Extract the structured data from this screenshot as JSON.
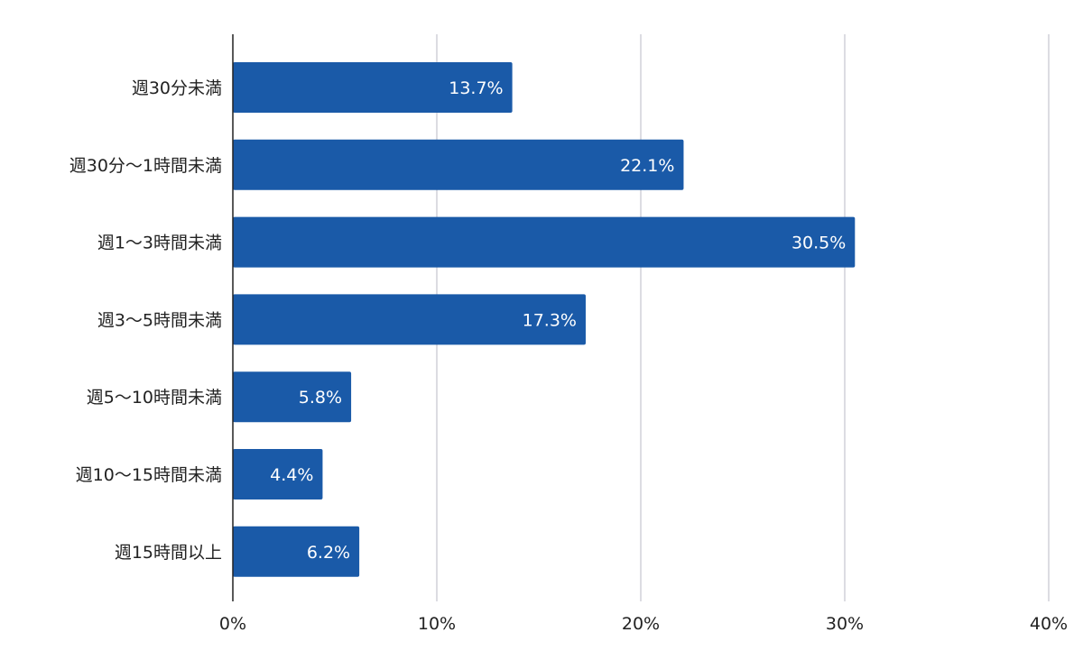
{
  "chart_data": {
    "type": "bar",
    "orientation": "horizontal",
    "categories": [
      "週30分未満",
      "週30分〜1時間未満",
      "週1〜3時間未満",
      "週3〜5時間未満",
      "週5〜10時間未満",
      "週10〜15時間未満",
      "週15時間以上"
    ],
    "values": [
      13.7,
      22.1,
      30.5,
      17.3,
      5.8,
      4.4,
      6.2
    ],
    "value_labels": [
      "13.7%",
      "22.1%",
      "30.5%",
      "17.3%",
      "5.8%",
      "4.4%",
      "6.2%"
    ],
    "x_ticks": [
      0,
      10,
      20,
      30,
      40
    ],
    "x_tick_labels": [
      "0%",
      "10%",
      "20%",
      "30%",
      "40%"
    ],
    "xlim": [
      0,
      40
    ],
    "grid": true,
    "bar_color": "#1a5aa8",
    "grid_color": "#d0d0d8",
    "axis_color": "#222222"
  }
}
